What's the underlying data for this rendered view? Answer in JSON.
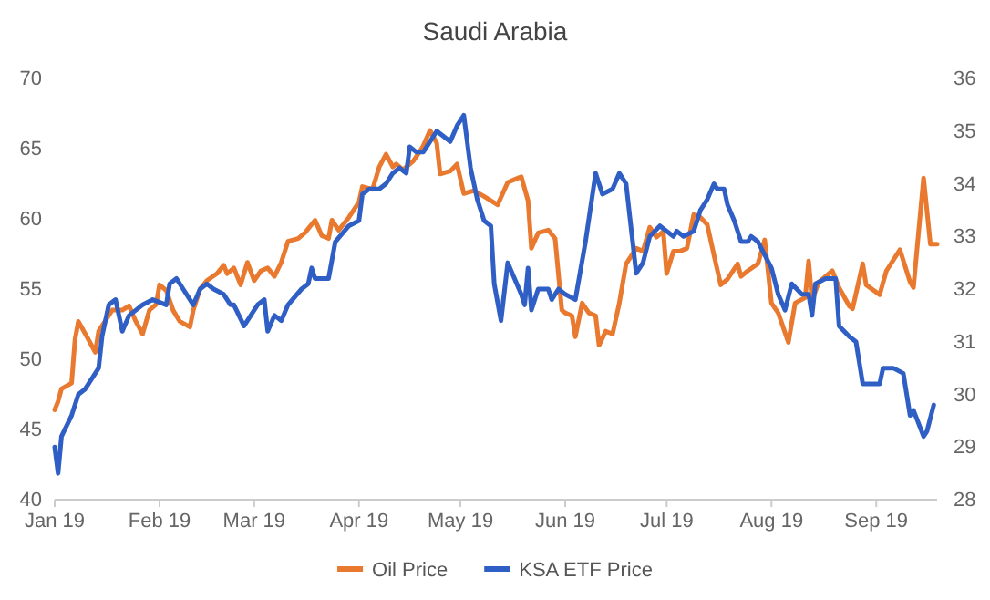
{
  "chart_data": {
    "type": "line",
    "title": "Saudi Arabia",
    "xlim": [
      "2019-01-01",
      "2019-09-19"
    ],
    "xticks": [
      {
        "value": "2019-01-01",
        "label": "Jan 19"
      },
      {
        "value": "2019-02-01",
        "label": "Feb 19"
      },
      {
        "value": "2019-03-01",
        "label": "Mar 19"
      },
      {
        "value": "2019-04-01",
        "label": "Apr 19"
      },
      {
        "value": "2019-05-01",
        "label": "May 19"
      },
      {
        "value": "2019-06-01",
        "label": "Jun 19"
      },
      {
        "value": "2019-07-01",
        "label": "Jul 19"
      },
      {
        "value": "2019-08-01",
        "label": "Aug 19"
      },
      {
        "value": "2019-09-01",
        "label": "Sep 19"
      }
    ],
    "ylim": [
      40,
      70
    ],
    "yticks": [
      40,
      45,
      50,
      55,
      60,
      65,
      70
    ],
    "y2lim": [
      28,
      36
    ],
    "y2ticks": [
      28,
      29,
      30,
      31,
      32,
      33,
      34,
      35,
      36
    ],
    "legend": "bottom",
    "series": [
      {
        "name": "Oil Price",
        "color": "#e8792e",
        "x": [
          "2019-01-01",
          "2019-01-02",
          "2019-01-03",
          "2019-01-06",
          "2019-01-07",
          "2019-01-08",
          "2019-01-11",
          "2019-01-13",
          "2019-01-14",
          "2019-01-18",
          "2019-01-21",
          "2019-01-23",
          "2019-01-25",
          "2019-01-27",
          "2019-01-29",
          "2019-01-31",
          "2019-02-01",
          "2019-02-03",
          "2019-02-05",
          "2019-02-07",
          "2019-02-10",
          "2019-02-11",
          "2019-02-13",
          "2019-02-15",
          "2019-02-18",
          "2019-02-20",
          "2019-02-21",
          "2019-02-23",
          "2019-02-25",
          "2019-02-27",
          "2019-03-01",
          "2019-03-03",
          "2019-03-05",
          "2019-03-07",
          "2019-03-09",
          "2019-03-11",
          "2019-03-14",
          "2019-03-16",
          "2019-03-19",
          "2019-03-21",
          "2019-03-23",
          "2019-03-24",
          "2019-03-26",
          "2019-03-29",
          "2019-04-01",
          "2019-04-02",
          "2019-04-05",
          "2019-04-07",
          "2019-04-09",
          "2019-04-11",
          "2019-04-12",
          "2019-04-14",
          "2019-04-17",
          "2019-04-19",
          "2019-04-20",
          "2019-04-22",
          "2019-04-24",
          "2019-04-25",
          "2019-04-28",
          "2019-04-30",
          "2019-05-02",
          "2019-05-05",
          "2019-05-08",
          "2019-05-12",
          "2019-05-15",
          "2019-05-17",
          "2019-05-19",
          "2019-05-21",
          "2019-05-22",
          "2019-05-24",
          "2019-05-27",
          "2019-05-29",
          "2019-05-31",
          "2019-06-01",
          "2019-06-03",
          "2019-06-04",
          "2019-06-06",
          "2019-06-08",
          "2019-06-10",
          "2019-06-11",
          "2019-06-13",
          "2019-06-15",
          "2019-06-17",
          "2019-06-19",
          "2019-06-22",
          "2019-06-24",
          "2019-06-26",
          "2019-06-28",
          "2019-06-30",
          "2019-07-01",
          "2019-07-03",
          "2019-07-05",
          "2019-07-07",
          "2019-07-09",
          "2019-07-11",
          "2019-07-13",
          "2019-07-15",
          "2019-07-17",
          "2019-07-19",
          "2019-07-22",
          "2019-07-23",
          "2019-07-25",
          "2019-07-28",
          "2019-07-30",
          "2019-08-01",
          "2019-08-03",
          "2019-08-06",
          "2019-08-08",
          "2019-08-11",
          "2019-08-12",
          "2019-08-13",
          "2019-08-15",
          "2019-08-19",
          "2019-08-21",
          "2019-08-24",
          "2019-08-25",
          "2019-08-28",
          "2019-08-29",
          "2019-09-02",
          "2019-09-04",
          "2019-09-08",
          "2019-09-11",
          "2019-09-12",
          "2019-09-15",
          "2019-09-17",
          "2019-09-19"
        ],
        "values": [
          46.4,
          47.0,
          47.9,
          48.3,
          51.4,
          52.7,
          51.4,
          50.5,
          52.0,
          53.5,
          53.5,
          53.8,
          52.7,
          51.8,
          53.5,
          53.9,
          55.3,
          54.9,
          53.5,
          52.7,
          52.3,
          53.5,
          55.0,
          55.6,
          56.1,
          56.7,
          56.1,
          56.5,
          55.3,
          56.9,
          55.6,
          56.3,
          56.5,
          55.9,
          56.9,
          58.4,
          58.6,
          59.0,
          59.9,
          58.8,
          58.6,
          59.9,
          59.2,
          60.1,
          61.2,
          62.3,
          62.1,
          63.7,
          64.6,
          63.7,
          63.9,
          63.5,
          64.1,
          64.8,
          65.2,
          66.3,
          65.4,
          63.2,
          63.4,
          63.9,
          61.8,
          62.0,
          61.6,
          61.0,
          62.6,
          62.8,
          63.0,
          61.3,
          57.9,
          59.0,
          59.2,
          58.6,
          53.5,
          53.3,
          53.1,
          51.6,
          54.0,
          53.3,
          53.1,
          51.0,
          52.0,
          51.8,
          54.0,
          56.8,
          57.9,
          57.7,
          59.4,
          58.7,
          59.1,
          56.1,
          57.7,
          57.7,
          57.9,
          60.3,
          60.1,
          59.6,
          57.4,
          55.3,
          55.7,
          56.8,
          55.9,
          56.3,
          56.8,
          58.5,
          54.0,
          53.3,
          51.2,
          54.0,
          54.4,
          57.0,
          54.2,
          55.5,
          56.3,
          55.1,
          53.8,
          53.6,
          56.8,
          55.3,
          54.6,
          56.3,
          57.8,
          55.5,
          55.1,
          62.9,
          58.2,
          58.2
        ]
      },
      {
        "name": "KSA ETF Price",
        "color": "#2f5fc4",
        "axis": "y2",
        "x": [
          "2019-01-01",
          "2019-01-02",
          "2019-01-03",
          "2019-01-06",
          "2019-01-08",
          "2019-01-10",
          "2019-01-13",
          "2019-01-14",
          "2019-01-15",
          "2019-01-17",
          "2019-01-19",
          "2019-01-21",
          "2019-01-23",
          "2019-01-25",
          "2019-01-27",
          "2019-01-30",
          "2019-02-03",
          "2019-02-04",
          "2019-02-06",
          "2019-02-08",
          "2019-02-11",
          "2019-02-13",
          "2019-02-15",
          "2019-02-17",
          "2019-02-20",
          "2019-02-22",
          "2019-02-23",
          "2019-02-26",
          "2019-02-28",
          "2019-03-02",
          "2019-03-04",
          "2019-03-05",
          "2019-03-07",
          "2019-03-09",
          "2019-03-11",
          "2019-03-15",
          "2019-03-17",
          "2019-03-18",
          "2019-03-19",
          "2019-03-23",
          "2019-03-25",
          "2019-03-29",
          "2019-04-01",
          "2019-04-02",
          "2019-04-04",
          "2019-04-07",
          "2019-04-09",
          "2019-04-11",
          "2019-04-13",
          "2019-04-15",
          "2019-04-16",
          "2019-04-18",
          "2019-04-20",
          "2019-04-22",
          "2019-04-24",
          "2019-04-26",
          "2019-04-28",
          "2019-04-30",
          "2019-05-01",
          "2019-05-02",
          "2019-05-04",
          "2019-05-06",
          "2019-05-08",
          "2019-05-10",
          "2019-05-11",
          "2019-05-13",
          "2019-05-15",
          "2019-05-17",
          "2019-05-19",
          "2019-05-20",
          "2019-05-21",
          "2019-05-22",
          "2019-05-24",
          "2019-05-27",
          "2019-05-28",
          "2019-05-30",
          "2019-06-01",
          "2019-06-04",
          "2019-06-07",
          "2019-06-10",
          "2019-06-12",
          "2019-06-15",
          "2019-06-17",
          "2019-06-19",
          "2019-06-22",
          "2019-06-24",
          "2019-06-26",
          "2019-06-29",
          "2019-07-01",
          "2019-07-03",
          "2019-07-04",
          "2019-07-06",
          "2019-07-09",
          "2019-07-11",
          "2019-07-13",
          "2019-07-15",
          "2019-07-16",
          "2019-07-18",
          "2019-07-19",
          "2019-07-21",
          "2019-07-23",
          "2019-07-25",
          "2019-07-26",
          "2019-07-28",
          "2019-08-01",
          "2019-08-03",
          "2019-08-05",
          "2019-08-07",
          "2019-08-10",
          "2019-08-12",
          "2019-08-13",
          "2019-08-14",
          "2019-08-17",
          "2019-08-20",
          "2019-08-21",
          "2019-08-24",
          "2019-08-26",
          "2019-08-28",
          "2019-09-01",
          "2019-09-02",
          "2019-09-03",
          "2019-09-06",
          "2019-09-09",
          "2019-09-11",
          "2019-09-12",
          "2019-09-15",
          "2019-09-16",
          "2019-09-18"
        ],
        "values": [
          29.0,
          28.5,
          29.2,
          29.6,
          30.0,
          30.1,
          30.4,
          30.5,
          31.1,
          31.7,
          31.8,
          31.2,
          31.5,
          31.6,
          31.7,
          31.8,
          31.7,
          32.1,
          32.2,
          32.0,
          31.7,
          32.0,
          32.1,
          32.0,
          31.9,
          31.7,
          31.7,
          31.3,
          31.5,
          31.7,
          31.8,
          31.2,
          31.5,
          31.4,
          31.7,
          32.0,
          32.1,
          32.4,
          32.2,
          32.2,
          32.9,
          33.2,
          33.3,
          33.8,
          33.9,
          33.9,
          34.0,
          34.2,
          34.3,
          34.2,
          34.7,
          34.6,
          34.6,
          34.8,
          35.0,
          34.9,
          34.8,
          35.1,
          35.2,
          35.3,
          34.3,
          33.7,
          33.3,
          33.2,
          32.1,
          31.4,
          32.5,
          32.2,
          31.9,
          31.7,
          32.4,
          31.6,
          32.0,
          32.0,
          31.8,
          32.0,
          31.9,
          31.8,
          32.9,
          34.2,
          33.8,
          33.9,
          34.2,
          34.0,
          32.3,
          32.5,
          33.0,
          33.2,
          33.1,
          33.0,
          33.1,
          33.0,
          33.1,
          33.5,
          33.7,
          34.0,
          33.9,
          33.9,
          33.6,
          33.3,
          32.9,
          32.9,
          33.0,
          32.9,
          32.4,
          31.9,
          31.6,
          32.1,
          31.9,
          31.9,
          31.5,
          32.1,
          32.2,
          32.2,
          31.3,
          31.1,
          31.0,
          30.2,
          30.2,
          30.2,
          30.5,
          30.5,
          30.4,
          29.6,
          29.7,
          29.2,
          29.3,
          29.8
        ]
      }
    ]
  }
}
